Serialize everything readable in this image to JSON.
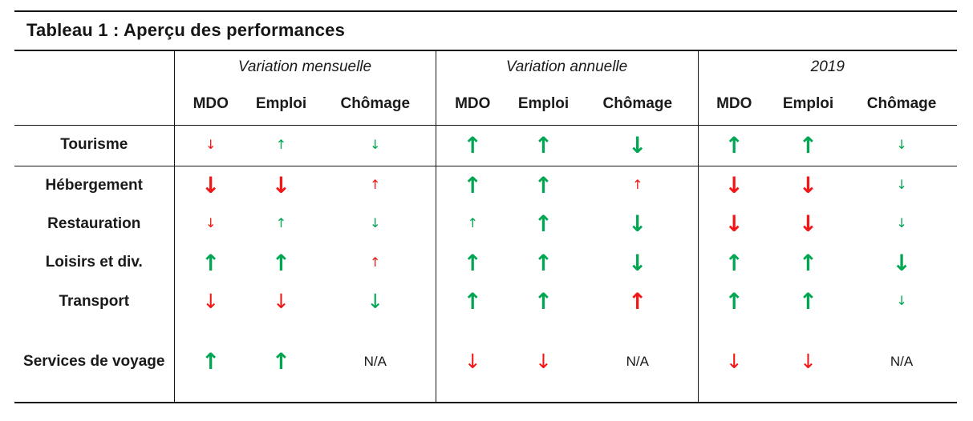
{
  "page": {
    "title": "Tableau 1 : Aperçu des performances"
  },
  "colors": {
    "green": "#00a651",
    "red": "#f31616"
  },
  "glyphs": {
    "up": "↑",
    "down": "↓"
  },
  "na_label": "N/A",
  "header": {
    "groups": [
      "Variation mensuelle",
      "Variation annuelle",
      "2019"
    ],
    "columns": [
      "MDO",
      "Emploi",
      "Chômage"
    ]
  },
  "rows": [
    {
      "label": "Tourisme",
      "cells": [
        {
          "type": "arrow",
          "dir": "down",
          "color": "red",
          "size": "s"
        },
        {
          "type": "arrow",
          "dir": "up",
          "color": "green",
          "size": "s"
        },
        {
          "type": "arrow",
          "dir": "down",
          "color": "green",
          "size": "s"
        },
        {
          "type": "arrow",
          "dir": "up",
          "color": "green",
          "size": "l"
        },
        {
          "type": "arrow",
          "dir": "up",
          "color": "green",
          "size": "l"
        },
        {
          "type": "arrow",
          "dir": "down",
          "color": "green",
          "size": "l"
        },
        {
          "type": "arrow",
          "dir": "up",
          "color": "green",
          "size": "l"
        },
        {
          "type": "arrow",
          "dir": "up",
          "color": "green",
          "size": "l"
        },
        {
          "type": "arrow",
          "dir": "down",
          "color": "green",
          "size": "s"
        }
      ]
    },
    {
      "label": "Hébergement",
      "cells": [
        {
          "type": "arrow",
          "dir": "down",
          "color": "red",
          "size": "l"
        },
        {
          "type": "arrow",
          "dir": "down",
          "color": "red",
          "size": "l"
        },
        {
          "type": "arrow",
          "dir": "up",
          "color": "red",
          "size": "s"
        },
        {
          "type": "arrow",
          "dir": "up",
          "color": "green",
          "size": "l"
        },
        {
          "type": "arrow",
          "dir": "up",
          "color": "green",
          "size": "l"
        },
        {
          "type": "arrow",
          "dir": "up",
          "color": "red",
          "size": "s"
        },
        {
          "type": "arrow",
          "dir": "down",
          "color": "red",
          "size": "l"
        },
        {
          "type": "arrow",
          "dir": "down",
          "color": "red",
          "size": "l"
        },
        {
          "type": "arrow",
          "dir": "down",
          "color": "green",
          "size": "s"
        }
      ]
    },
    {
      "label": "Restauration",
      "cells": [
        {
          "type": "arrow",
          "dir": "down",
          "color": "red",
          "size": "s"
        },
        {
          "type": "arrow",
          "dir": "up",
          "color": "green",
          "size": "s"
        },
        {
          "type": "arrow",
          "dir": "down",
          "color": "green",
          "size": "s"
        },
        {
          "type": "arrow",
          "dir": "up",
          "color": "green",
          "size": "s"
        },
        {
          "type": "arrow",
          "dir": "up",
          "color": "green",
          "size": "l"
        },
        {
          "type": "arrow",
          "dir": "down",
          "color": "green",
          "size": "l"
        },
        {
          "type": "arrow",
          "dir": "down",
          "color": "red",
          "size": "l"
        },
        {
          "type": "arrow",
          "dir": "down",
          "color": "red",
          "size": "l"
        },
        {
          "type": "arrow",
          "dir": "down",
          "color": "green",
          "size": "s"
        }
      ]
    },
    {
      "label": "Loisirs et div.",
      "cells": [
        {
          "type": "arrow",
          "dir": "up",
          "color": "green",
          "size": "l"
        },
        {
          "type": "arrow",
          "dir": "up",
          "color": "green",
          "size": "l"
        },
        {
          "type": "arrow",
          "dir": "up",
          "color": "red",
          "size": "s"
        },
        {
          "type": "arrow",
          "dir": "up",
          "color": "green",
          "size": "l"
        },
        {
          "type": "arrow",
          "dir": "up",
          "color": "green",
          "size": "l"
        },
        {
          "type": "arrow",
          "dir": "down",
          "color": "green",
          "size": "l"
        },
        {
          "type": "arrow",
          "dir": "up",
          "color": "green",
          "size": "l"
        },
        {
          "type": "arrow",
          "dir": "up",
          "color": "green",
          "size": "l"
        },
        {
          "type": "arrow",
          "dir": "down",
          "color": "green",
          "size": "l"
        }
      ]
    },
    {
      "label": "Transport",
      "cells": [
        {
          "type": "arrow",
          "dir": "down",
          "color": "red",
          "size": "m"
        },
        {
          "type": "arrow",
          "dir": "down",
          "color": "red",
          "size": "m"
        },
        {
          "type": "arrow",
          "dir": "down",
          "color": "green",
          "size": "m"
        },
        {
          "type": "arrow",
          "dir": "up",
          "color": "green",
          "size": "l"
        },
        {
          "type": "arrow",
          "dir": "up",
          "color": "green",
          "size": "l"
        },
        {
          "type": "arrow",
          "dir": "up",
          "color": "red",
          "size": "l"
        },
        {
          "type": "arrow",
          "dir": "up",
          "color": "green",
          "size": "l"
        },
        {
          "type": "arrow",
          "dir": "up",
          "color": "green",
          "size": "l"
        },
        {
          "type": "arrow",
          "dir": "down",
          "color": "green",
          "size": "s"
        }
      ]
    },
    {
      "label": "Services de voyage",
      "cells": [
        {
          "type": "arrow",
          "dir": "up",
          "color": "green",
          "size": "l"
        },
        {
          "type": "arrow",
          "dir": "up",
          "color": "green",
          "size": "l"
        },
        {
          "type": "na"
        },
        {
          "type": "arrow",
          "dir": "down",
          "color": "red",
          "size": "m"
        },
        {
          "type": "arrow",
          "dir": "down",
          "color": "red",
          "size": "m"
        },
        {
          "type": "na"
        },
        {
          "type": "arrow",
          "dir": "down",
          "color": "red",
          "size": "m"
        },
        {
          "type": "arrow",
          "dir": "down",
          "color": "red",
          "size": "m"
        },
        {
          "type": "na"
        }
      ]
    }
  ]
}
